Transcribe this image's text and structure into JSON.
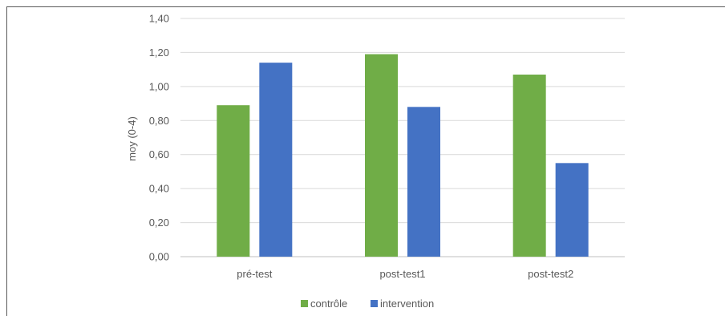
{
  "chart_data": {
    "type": "bar",
    "categories": [
      "pré-test",
      "post-test1",
      "post-test2"
    ],
    "series": [
      {
        "name": "contrôle",
        "values": [
          0.89,
          1.19,
          1.07
        ],
        "color": "#70ad47"
      },
      {
        "name": "intervention",
        "values": [
          1.14,
          0.88,
          0.55
        ],
        "color": "#4472c4"
      }
    ],
    "xlabel": "",
    "ylabel": "moy (0-4)",
    "ylim": [
      0,
      1.4
    ],
    "yticks": [
      "0,00",
      "0,20",
      "0,40",
      "0,60",
      "0,80",
      "1,00",
      "1,20",
      "1,40"
    ],
    "grid": true,
    "legend_position": "bottom"
  }
}
